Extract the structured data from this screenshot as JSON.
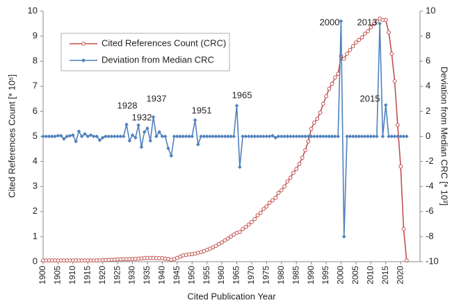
{
  "chart_data": {
    "type": "line",
    "x_label": "Cited Publication Year",
    "y_label": "Cited References Count [* 10⁵]",
    "y2_label": "Deviation from Median CRC [* 10³]",
    "xlim": [
      1900,
      2026.5
    ],
    "xticks": [
      1900,
      1905,
      1910,
      1915,
      1920,
      1925,
      1930,
      1935,
      1940,
      1945,
      1950,
      1955,
      1960,
      1965,
      1970,
      1975,
      1980,
      1985,
      1990,
      1995,
      2000,
      2005,
      2010,
      2015,
      2020
    ],
    "ylim": [
      0,
      10
    ],
    "yticks": [
      0,
      1,
      2,
      3,
      4,
      5,
      6,
      7,
      8,
      9,
      10
    ],
    "y2lim": [
      -10,
      10
    ],
    "y2ticks": [
      -10,
      -8,
      -6,
      -4,
      -2,
      0,
      2,
      4,
      6,
      8,
      10
    ],
    "legend": "upper left",
    "annotations": [
      "1928",
      "1932",
      "1937",
      "1951",
      "1965",
      "2000",
      "2013",
      "2015"
    ],
    "x": [
      1900,
      1901,
      1902,
      1903,
      1904,
      1905,
      1906,
      1907,
      1908,
      1909,
      1910,
      1911,
      1912,
      1913,
      1914,
      1915,
      1916,
      1917,
      1918,
      1919,
      1920,
      1921,
      1922,
      1923,
      1924,
      1925,
      1926,
      1927,
      1928,
      1929,
      1930,
      1931,
      1932,
      1933,
      1934,
      1935,
      1936,
      1937,
      1938,
      1939,
      1940,
      1941,
      1942,
      1943,
      1944,
      1945,
      1946,
      1947,
      1948,
      1949,
      1950,
      1951,
      1952,
      1953,
      1954,
      1955,
      1956,
      1957,
      1958,
      1959,
      1960,
      1961,
      1962,
      1963,
      1964,
      1965,
      1966,
      1967,
      1968,
      1969,
      1970,
      1971,
      1972,
      1973,
      1974,
      1975,
      1976,
      1977,
      1978,
      1979,
      1980,
      1981,
      1982,
      1983,
      1984,
      1985,
      1986,
      1987,
      1988,
      1989,
      1990,
      1991,
      1992,
      1993,
      1994,
      1995,
      1996,
      1997,
      1998,
      1999,
      2000,
      2001,
      2002,
      2003,
      2004,
      2005,
      2006,
      2007,
      2008,
      2009,
      2010,
      2011,
      2012,
      2013,
      2014,
      2015,
      2016,
      2017,
      2018,
      2019,
      2020,
      2021,
      2022
    ],
    "series": [
      {
        "name": "Cited References Count (CRC)",
        "color": "#c0504d",
        "marker": "circle",
        "values": [
          0.05,
          0.05,
          0.05,
          0.05,
          0.05,
          0.05,
          0.05,
          0.05,
          0.05,
          0.05,
          0.05,
          0.05,
          0.05,
          0.05,
          0.05,
          0.05,
          0.05,
          0.05,
          0.05,
          0.05,
          0.06,
          0.07,
          0.07,
          0.08,
          0.08,
          0.09,
          0.09,
          0.1,
          0.1,
          0.1,
          0.11,
          0.11,
          0.12,
          0.13,
          0.14,
          0.15,
          0.15,
          0.15,
          0.14,
          0.14,
          0.14,
          0.12,
          0.1,
          0.08,
          0.1,
          0.15,
          0.2,
          0.25,
          0.27,
          0.29,
          0.3,
          0.32,
          0.35,
          0.38,
          0.42,
          0.47,
          0.52,
          0.57,
          0.63,
          0.7,
          0.77,
          0.85,
          0.92,
          1.0,
          1.08,
          1.15,
          1.18,
          1.3,
          1.38,
          1.48,
          1.58,
          1.7,
          1.85,
          1.95,
          2.1,
          2.2,
          2.35,
          2.45,
          2.55,
          2.75,
          2.85,
          3.0,
          3.2,
          3.35,
          3.55,
          3.7,
          3.9,
          4.15,
          4.45,
          4.8,
          5.3,
          5.55,
          5.7,
          5.95,
          6.3,
          6.6,
          6.9,
          7.1,
          7.35,
          7.5,
          8.2,
          8.1,
          8.3,
          8.45,
          8.6,
          8.75,
          8.85,
          8.95,
          9.1,
          9.2,
          9.35,
          9.5,
          9.6,
          9.7,
          9.65,
          9.65,
          9.15,
          8.3,
          7.2,
          5.45,
          3.8,
          1.3,
          0.05
        ]
      },
      {
        "name": "Deviation from Median CRC",
        "color": "#4f81bd",
        "marker": "diamond",
        "axis": "y2",
        "values": [
          0,
          0,
          0,
          0,
          0,
          0.05,
          0.05,
          -0.2,
          0,
          0.05,
          0.1,
          -0.4,
          0.4,
          0,
          0.2,
          0,
          0.1,
          0,
          0,
          -0.3,
          -0.1,
          0,
          0,
          0,
          0,
          0,
          0,
          0,
          0.95,
          -0.35,
          0.1,
          -0.1,
          0.9,
          -0.85,
          0.35,
          0.65,
          -0.35,
          1.55,
          0,
          0.35,
          0,
          0,
          -0.95,
          -1.55,
          0,
          0,
          0,
          0,
          0,
          0,
          0,
          1.3,
          -0.65,
          0,
          0,
          0,
          0,
          0,
          0,
          0,
          0,
          0,
          0,
          0,
          0,
          2.45,
          -2.45,
          0,
          0,
          0,
          0,
          0,
          0,
          0,
          0,
          0,
          0,
          0.05,
          -0.1,
          0,
          0,
          0,
          0,
          0,
          0,
          0,
          0,
          0,
          0,
          0,
          0,
          0,
          0,
          0,
          0,
          0,
          0,
          0,
          0,
          0,
          9.2,
          -8.0,
          0,
          0,
          0,
          0,
          0,
          0,
          0,
          0,
          0,
          0,
          0,
          9.0,
          0,
          2.5,
          0,
          0,
          0,
          0,
          0,
          0,
          0
        ]
      }
    ]
  }
}
